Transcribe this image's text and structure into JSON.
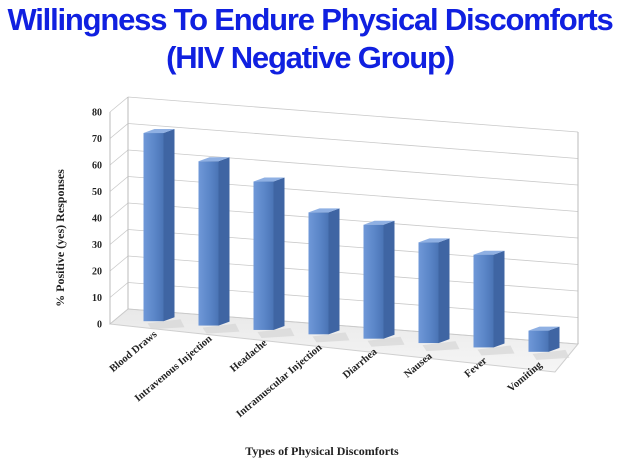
{
  "chart_data": {
    "type": "bar",
    "title": "Willingness To Endure Physical Discomforts",
    "subtitle": "(HIV Negative Group)",
    "xlabel": "Types of Physical Discomforts",
    "ylabel": "% Positive (yes) Responses",
    "categories": [
      "Blood Draws",
      "Intravenous Injection",
      "Headache",
      "Intramuscular Injection",
      "Diarrhea",
      "Nausea",
      "Fever",
      "Vomiting"
    ],
    "values": [
      71,
      62,
      56,
      46,
      43,
      38,
      35,
      8
    ],
    "ylim": [
      0,
      80
    ],
    "yticks": [
      0,
      10,
      20,
      30,
      40,
      50,
      60,
      70,
      80
    ],
    "grid": true,
    "legend": "none",
    "bar_color": "#5b86c8",
    "three_d": true
  }
}
